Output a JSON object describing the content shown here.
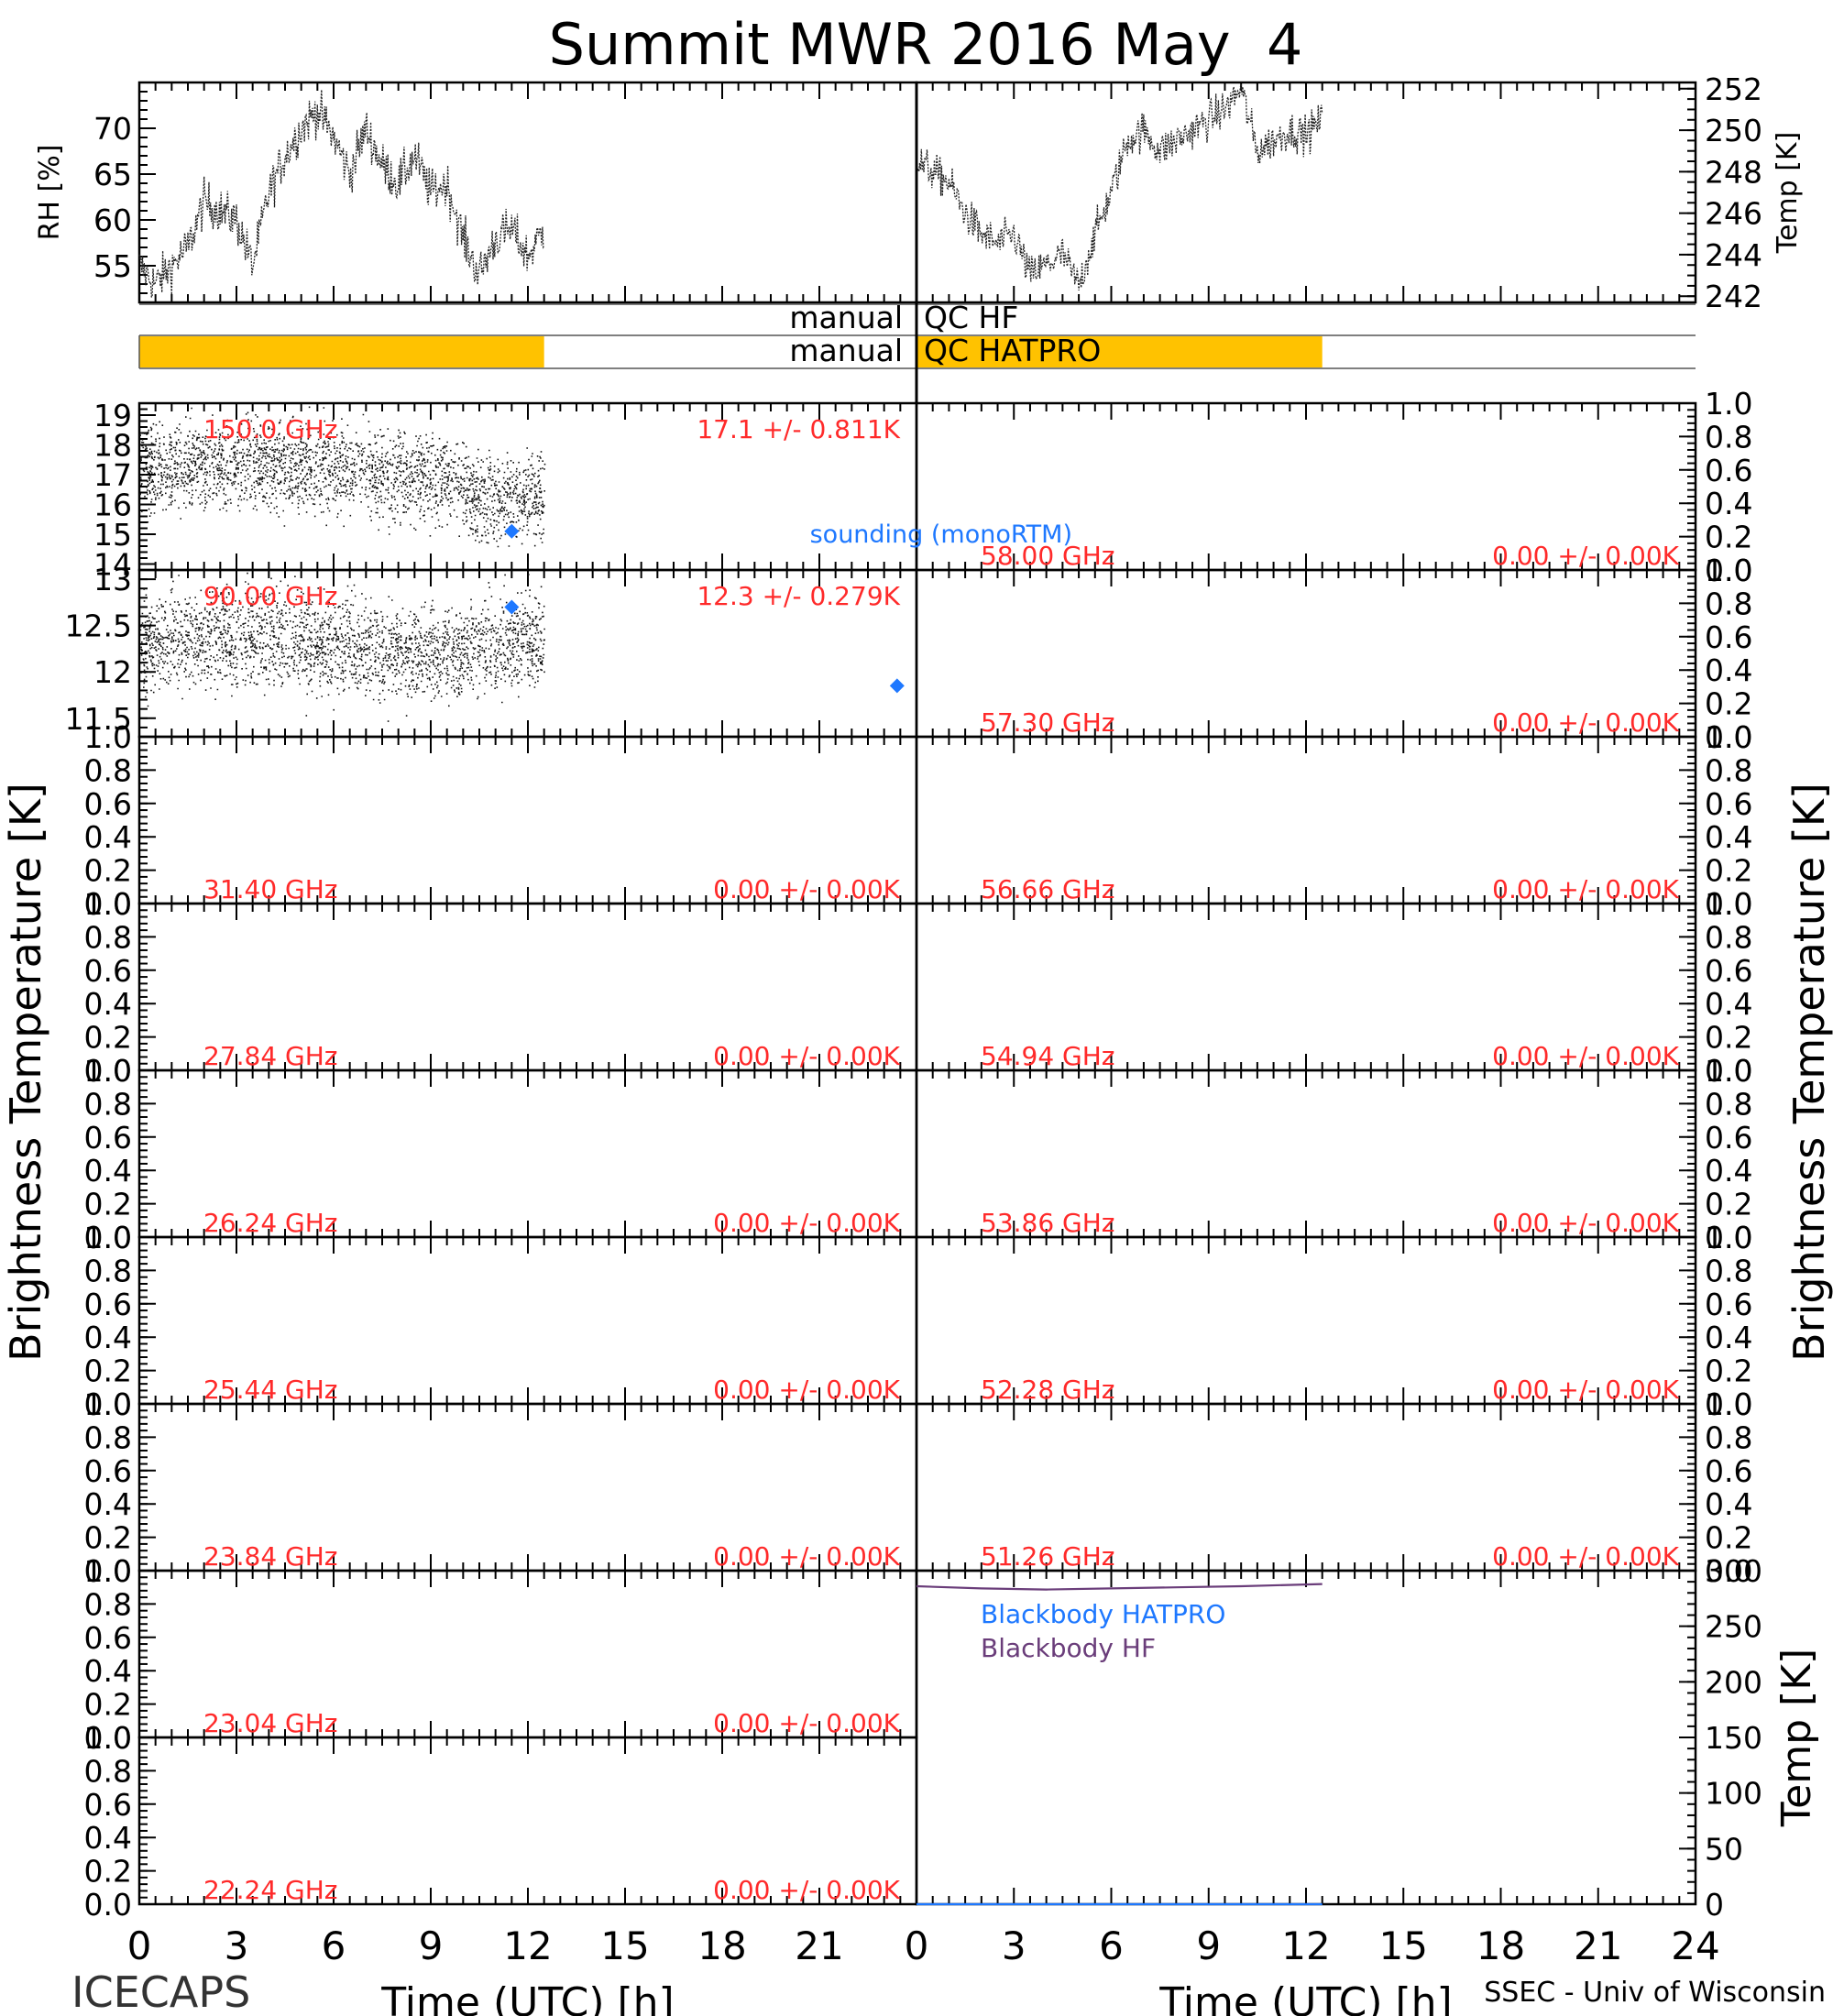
{
  "title": "Summit MWR 2016 May  4",
  "footer_left": "ICECAPS",
  "footer_right": "SSEC - Univ of Wisconsin",
  "colors": {
    "qc_bar": "#FFC200",
    "freq_label": "#FF2A2A",
    "sounding": "#1E78FF",
    "bb_hf": "#6A3D7A",
    "bb_hatpro": "#1E78FF",
    "trace": "#000000"
  },
  "chart_data": [
    {
      "type": "line",
      "panel": "rh",
      "ylabel": "RH [%]",
      "xlim": [
        0,
        24
      ],
      "ylim": [
        51,
        75
      ],
      "yticks": [
        55,
        60,
        65,
        70
      ],
      "x": [
        0,
        0.5,
        1,
        1.5,
        2,
        2.5,
        3,
        3.5,
        4,
        4.5,
        5,
        5.5,
        6,
        6.5,
        7,
        7.5,
        8,
        8.5,
        9,
        9.5,
        10,
        10.5,
        11,
        11.5,
        12,
        12.5
      ],
      "y": [
        55,
        53,
        55,
        57,
        62,
        61,
        60,
        55,
        63,
        67,
        70,
        72,
        69,
        65,
        70,
        66,
        64,
        67,
        63,
        64,
        58,
        54,
        58,
        59,
        56,
        59
      ]
    },
    {
      "type": "line",
      "panel": "temp",
      "ylabel": "Temp [K]",
      "xlim": [
        0,
        24
      ],
      "ylim": [
        241.7,
        252.3
      ],
      "yticks": [
        242,
        244,
        246,
        248,
        250,
        252
      ],
      "x": [
        0,
        0.5,
        1,
        1.5,
        2,
        2.5,
        3,
        3.5,
        4,
        4.5,
        5,
        5.5,
        6,
        6.5,
        7,
        7.5,
        8,
        8.5,
        9,
        9.5,
        10,
        10.5,
        11,
        11.5,
        12,
        12.5
      ],
      "y": [
        248.5,
        248,
        247.5,
        246,
        245,
        244.5,
        245,
        243,
        243.5,
        244,
        242.5,
        245,
        247,
        249.5,
        250,
        249,
        249.5,
        250,
        250.5,
        251,
        252,
        249,
        249.5,
        250,
        249.8,
        250.5
      ]
    },
    {
      "type": "status",
      "panel": "qc",
      "rows": [
        {
          "label": "manual",
          "name": "QC HF",
          "flag_ranges": []
        },
        {
          "label": "manual",
          "name": "QC HATPRO",
          "flag_ranges": [
            [
              0,
              12.5
            ]
          ]
        }
      ],
      "hatpro_flag_range_left": [
        0,
        12.5
      ]
    },
    {
      "type": "scatter",
      "panel": "tb_150",
      "column": "left",
      "freq": "150.0 GHz",
      "stats": "17.1 +/- 0.811K",
      "ylim": [
        13.8,
        19.4
      ],
      "yticks": [
        14,
        15,
        16,
        17,
        18,
        19
      ],
      "mean": 17.1,
      "std": 0.811,
      "time_range": [
        0,
        12.5
      ],
      "sounding_x": [
        11.5
      ],
      "sounding_y": [
        15.1
      ]
    },
    {
      "type": "scatter",
      "panel": "tb_90",
      "column": "left",
      "freq": "90.00 GHz",
      "stats": "12.3 +/- 0.279K",
      "ylim": [
        11.3,
        13.1
      ],
      "yticks": [
        11.5,
        12.0,
        12.5,
        13.0
      ],
      "mean": 12.3,
      "std": 0.279,
      "time_range": [
        0,
        12.5
      ],
      "sounding_x": [
        11.5,
        23.4
      ],
      "sounding_y": [
        12.7,
        11.85
      ]
    },
    {
      "type": "scatter",
      "panel": "tb_58",
      "column": "right",
      "freq": "58.00 GHz",
      "stats": "0.00 +/- 0.00K",
      "ylim": [
        0,
        1
      ]
    },
    {
      "type": "scatter",
      "panel": "tb_5730",
      "column": "right",
      "freq": "57.30 GHz",
      "stats": "0.00 +/- 0.00K",
      "ylim": [
        0,
        1
      ]
    },
    {
      "type": "scatter",
      "panel": "tb_3140",
      "column": "left",
      "freq": "31.40 GHz",
      "stats": "0.00 +/- 0.00K",
      "ylim": [
        0,
        1
      ]
    },
    {
      "type": "scatter",
      "panel": "tb_5666",
      "column": "right",
      "freq": "56.66 GHz",
      "stats": "0.00 +/- 0.00K",
      "ylim": [
        0,
        1
      ]
    },
    {
      "type": "scatter",
      "panel": "tb_2784",
      "column": "left",
      "freq": "27.84 GHz",
      "stats": "0.00 +/- 0.00K",
      "ylim": [
        0,
        1
      ]
    },
    {
      "type": "scatter",
      "panel": "tb_5494",
      "column": "right",
      "freq": "54.94 GHz",
      "stats": "0.00 +/- 0.00K",
      "ylim": [
        0,
        1
      ]
    },
    {
      "type": "scatter",
      "panel": "tb_2624",
      "column": "left",
      "freq": "26.24 GHz",
      "stats": "0.00 +/- 0.00K",
      "ylim": [
        0,
        1
      ]
    },
    {
      "type": "scatter",
      "panel": "tb_5386",
      "column": "right",
      "freq": "53.86 GHz",
      "stats": "0.00 +/- 0.00K",
      "ylim": [
        0,
        1
      ]
    },
    {
      "type": "scatter",
      "panel": "tb_2544",
      "column": "left",
      "freq": "25.44 GHz",
      "stats": "0.00 +/- 0.00K",
      "ylim": [
        0,
        1
      ]
    },
    {
      "type": "scatter",
      "panel": "tb_5228",
      "column": "right",
      "freq": "52.28 GHz",
      "stats": "0.00 +/- 0.00K",
      "ylim": [
        0,
        1
      ]
    },
    {
      "type": "scatter",
      "panel": "tb_2384",
      "column": "left",
      "freq": "23.84 GHz",
      "stats": "0.00 +/- 0.00K",
      "ylim": [
        0,
        1
      ]
    },
    {
      "type": "scatter",
      "panel": "tb_5126",
      "column": "right",
      "freq": "51.26 GHz",
      "stats": "0.00 +/- 0.00K",
      "ylim": [
        0,
        1
      ]
    },
    {
      "type": "scatter",
      "panel": "tb_2304",
      "column": "left",
      "freq": "23.04 GHz",
      "stats": "0.00 +/- 0.00K",
      "ylim": [
        0,
        1
      ]
    },
    {
      "type": "scatter",
      "panel": "tb_2224",
      "column": "left",
      "freq": "22.24 GHz",
      "stats": "0.00 +/- 0.00K",
      "ylim": [
        0,
        1
      ]
    },
    {
      "type": "line",
      "panel": "blackbody",
      "column": "right",
      "ylabel": "Temp [K]",
      "ylim": [
        0,
        300
      ],
      "yticks": [
        0,
        50,
        100,
        150,
        200,
        250,
        300
      ],
      "series": [
        {
          "name": "Blackbody HATPRO",
          "x": [
            0,
            12.5
          ],
          "y": [
            0,
            0
          ]
        },
        {
          "name": "Blackbody HF",
          "x": [
            0,
            2,
            4,
            6,
            8,
            10,
            12.5
          ],
          "y": [
            286,
            284,
            283,
            284,
            285,
            286,
            288
          ]
        }
      ]
    }
  ],
  "axes": {
    "xlabel": "Time (UTC) [h]",
    "xticks": [
      "0",
      "3",
      "6",
      "9",
      "12",
      "15",
      "18",
      "21",
      "24"
    ],
    "left_ylabel": "Brightness Temperature [K]",
    "right_ylabel": "Brightness Temperature [K]",
    "unit_yticks": [
      "0.0",
      "0.2",
      "0.4",
      "0.6",
      "0.8",
      "1.0"
    ],
    "sounding_label": "sounding (monoRTM)"
  }
}
